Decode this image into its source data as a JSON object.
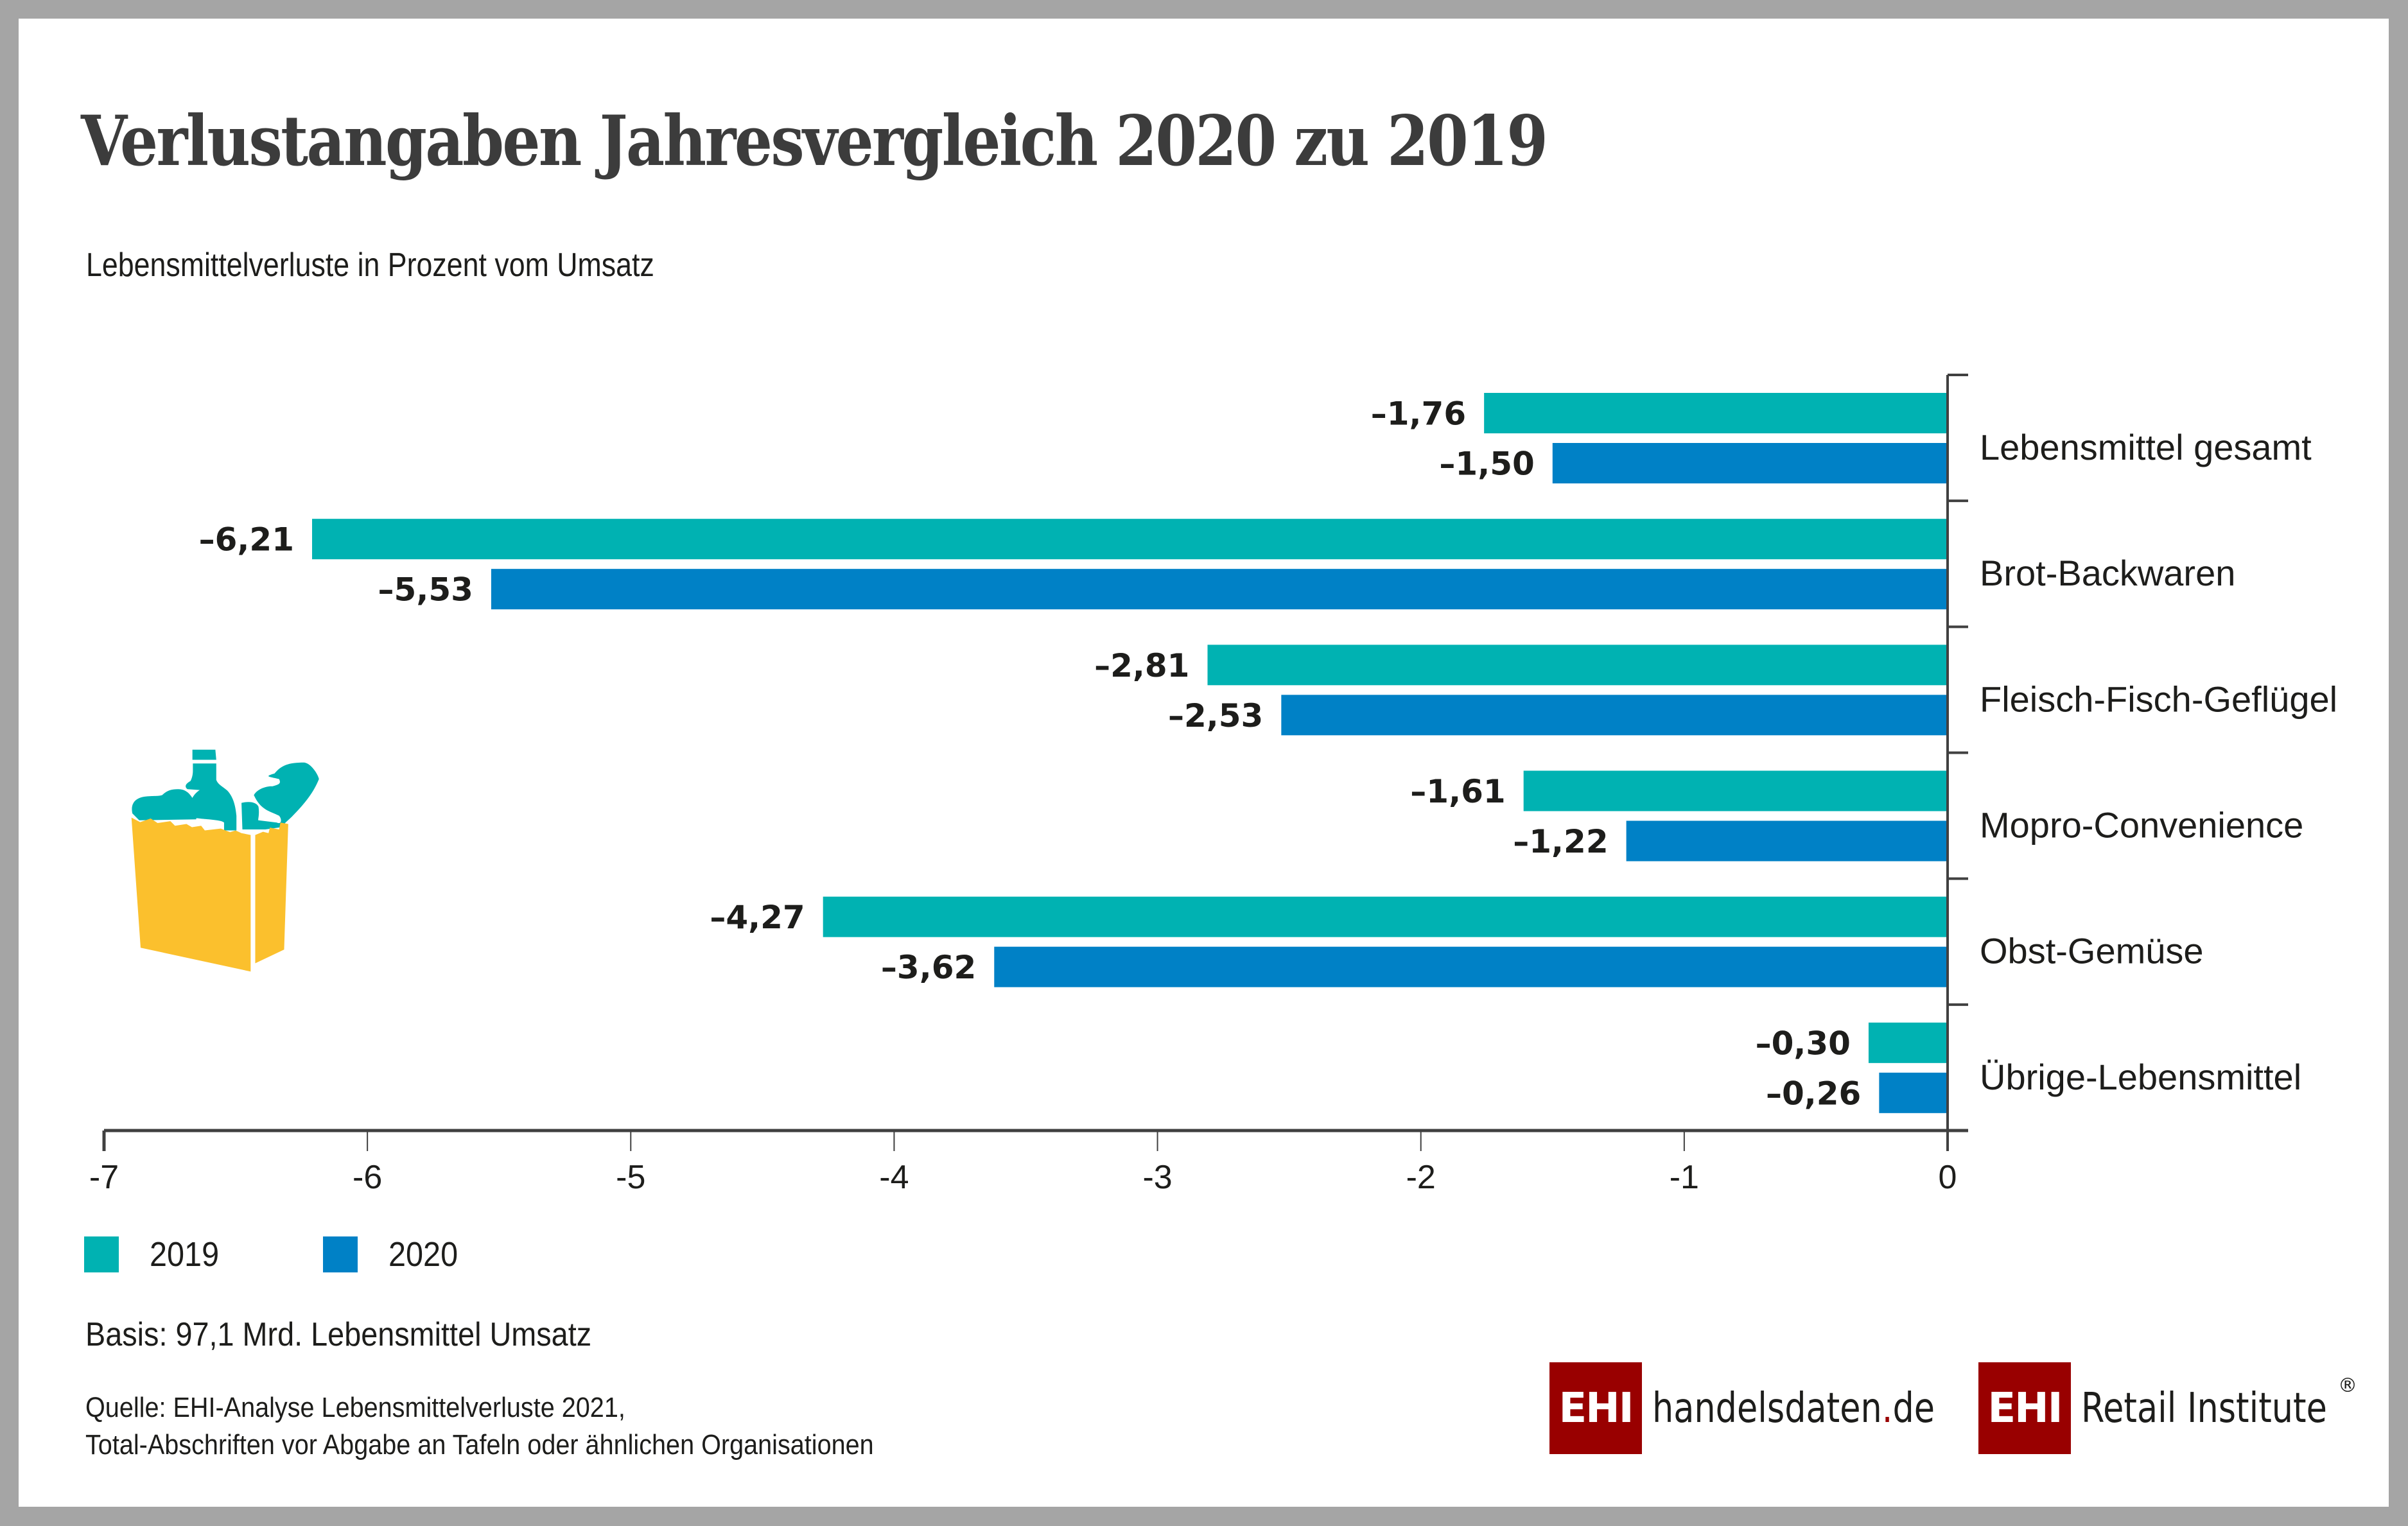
{
  "title": "Verlustangaben Jahresvergleich 2020 zu 2019",
  "subtitle": "Lebensmittelverluste in Prozent vom Umsatz",
  "colors": {
    "series_2019": "#00b2b2",
    "series_2020": "#0081c6",
    "axis": "#404040",
    "text": "#1d1d1b",
    "title": "#3c3c3c",
    "logo_red": "#990000",
    "bag_yellow": "#fbc02d",
    "bag_food": "#00b2b2",
    "frame": "#a5a5a5"
  },
  "chart_data": {
    "type": "bar",
    "orientation": "horizontal",
    "title": "Verlustangaben Jahresvergleich 2020 zu 2019",
    "subtitle": "Lebensmittelverluste in Prozent vom Umsatz",
    "xlabel": "",
    "ylabel": "",
    "xlim": [
      -7,
      0
    ],
    "xticks": [
      -7,
      -6,
      -5,
      -4,
      -3,
      -2,
      -1,
      0
    ],
    "xtick_labels": [
      "-7",
      "-6",
      "-5",
      "-4",
      "-3",
      "-2",
      "-1",
      "0"
    ],
    "grid": false,
    "legend_position": "bottom-left",
    "categories": [
      "Lebensmittel gesamt",
      "Brot-Backwaren",
      "Fleisch-Fisch-Geflügel",
      "Mopro-Convenience",
      "Obst-Gemüse",
      "Übrige-Lebensmittel"
    ],
    "series": [
      {
        "name": "2019",
        "color": "#00b2b2",
        "values": [
          -1.76,
          -6.21,
          -2.81,
          -1.61,
          -4.27,
          -0.3
        ],
        "labels": [
          "–1,76",
          "–6,21",
          "–2,81",
          "–1,61",
          "–4,27",
          "–0,30"
        ]
      },
      {
        "name": "2020",
        "color": "#0081c6",
        "values": [
          -1.5,
          -5.53,
          -2.53,
          -1.22,
          -3.62,
          -0.26
        ],
        "labels": [
          "–1,50",
          "–5,53",
          "–2,53",
          "–1,22",
          "–3,62",
          "–0,26"
        ]
      }
    ]
  },
  "legend": [
    {
      "label": "2019",
      "color": "#00b2b2"
    },
    {
      "label": "2020",
      "color": "#0081c6"
    }
  ],
  "basis": "Basis: 97,1 Mrd. Lebensmittel Umsatz",
  "source": {
    "line1": "Quelle: EHI-Analyse Lebensmittelverluste 2021,",
    "line2": "Total-Abschriften vor Abgabe an Tafeln oder ähnlichen Organisationen"
  },
  "logos": {
    "handelsdaten": {
      "box": "EHI",
      "text_main": "handelsdaten",
      "dot": ".",
      "text_tld": "de"
    },
    "retail_institute": {
      "box": "EHI",
      "text": "Retail Institute",
      "reg": "®"
    }
  }
}
